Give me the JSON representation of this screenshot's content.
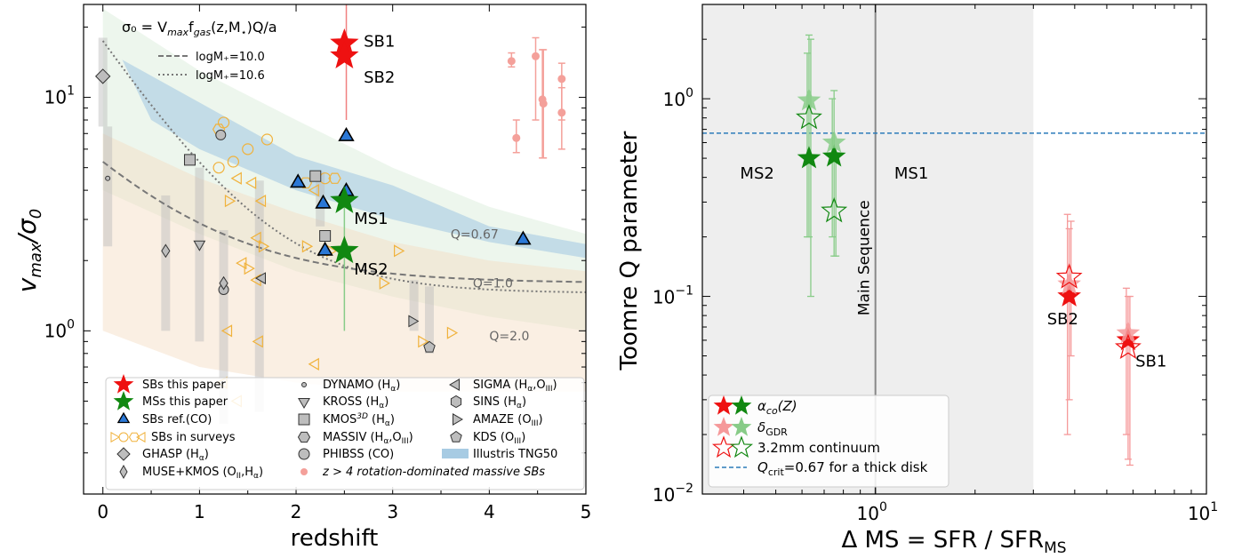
{
  "chart_data": [
    {
      "type": "scatter",
      "xlabel": "redshift",
      "ylabel": "v_max/σ_0",
      "xlim": [
        -0.2,
        5
      ],
      "ylim": [
        0.2,
        25
      ],
      "yscale": "log",
      "xticks": [
        "0",
        "1",
        "2",
        "3",
        "4",
        "5"
      ],
      "yticks": [
        {
          "value": 1,
          "base": "10",
          "exp": "0"
        },
        {
          "value": 10,
          "base": "10",
          "exp": "1"
        }
      ],
      "formula": {
        "text": "σ₀ = V",
        "sub1": "max",
        "mid": "f",
        "sub2": "gas",
        "rest": "(z,M",
        "sub3": "⋆",
        "end": ")Q/a"
      },
      "model_lines": [
        {
          "name": "logM₊=10.0",
          "style": "dashed"
        },
        {
          "name": "logM₊=10.6",
          "style": "dotted"
        }
      ],
      "q_labels": [
        {
          "text": "Q=0.67",
          "x": 3.6,
          "y": 2.6
        },
        {
          "text": "Q=1.0",
          "x": 3.83,
          "y": 1.6
        },
        {
          "text": "Q=2.0",
          "x": 4.0,
          "y": 0.95
        }
      ],
      "sb_this_paper": [
        {
          "label": "SB1",
          "x": 2.5,
          "y": 17
        },
        {
          "label": "SB2",
          "x": 2.5,
          "y": 15
        }
      ],
      "ms_this_paper": [
        {
          "label": "MS1",
          "x": 2.5,
          "y": 3.6
        },
        {
          "label": "MS2",
          "x": 2.5,
          "y": 2.2
        }
      ],
      "sbs_ref_co": [
        {
          "x": 2.52,
          "y": 6.8
        },
        {
          "x": 2.02,
          "y": 4.3
        },
        {
          "x": 2.28,
          "y": 3.5
        },
        {
          "x": 2.52,
          "y": 3.95
        },
        {
          "x": 2.3,
          "y": 2.2
        },
        {
          "x": 4.35,
          "y": 2.45
        }
      ],
      "z4_rotation_sbs": [
        {
          "x": 4.23,
          "y": 14.3,
          "lo": 13.5,
          "hi": 15.5
        },
        {
          "x": 4.28,
          "y": 6.7,
          "lo": 5.8,
          "hi": 8.0
        },
        {
          "x": 4.48,
          "y": 15.0,
          "lo": 8.0,
          "hi": 18.0
        },
        {
          "x": 4.55,
          "y": 9.8,
          "lo": 5.5,
          "hi": 16.0
        },
        {
          "x": 4.56,
          "y": 9.4,
          "lo": 5.5,
          "hi": 16.0
        },
        {
          "x": 4.75,
          "y": 12.0,
          "lo": 8.0,
          "hi": 14.0
        },
        {
          "x": 4.75,
          "y": 8.6,
          "lo": 6.0,
          "hi": 11.0
        }
      ],
      "legend": {
        "col1": [
          "SBs this paper",
          "MSs this paper",
          "SBs ref.(CO)",
          "SBs in surveys",
          "GHASP (H",
          "MUSE+KMOS (O"
        ],
        "col2": [
          "DYNAMO (H",
          "KROSS (H",
          "KMOS",
          "MASSIV (H",
          "PHIBSS (CO)",
          "z > 4 rotation-dominated massive SBs"
        ],
        "col3": [
          "SIGMA (H",
          "SINS (H",
          "AMAZE (O",
          "KDS (O",
          "Illustris TNG50"
        ],
        "sub": {
          "alpha": "α",
          "III": "III",
          "II": "II",
          "3D": "3D"
        }
      }
    },
    {
      "type": "scatter",
      "xlabel": "Δ MS = SFR / SFR",
      "xlabel_sub": "MS",
      "ylabel": "Toomre Q parameter",
      "xscale": "log",
      "yscale": "log",
      "xlim": [
        0.3,
        10
      ],
      "ylim": [
        0.01,
        3
      ],
      "xticks": [
        {
          "value": 1,
          "base": "10",
          "exp": "0"
        },
        {
          "value": 10,
          "base": "10",
          "exp": "1"
        }
      ],
      "yticks": [
        {
          "value": 0.01,
          "base": "10",
          "exp": "−2"
        },
        {
          "value": 0.1,
          "base": "10",
          "exp": "−1"
        },
        {
          "value": 1,
          "base": "10",
          "exp": "0"
        }
      ],
      "q_crit": 0.67,
      "main_sequence_band": [
        0.3,
        3.0
      ],
      "main_sequence_line": 1.0,
      "main_sequence_label": "Main Sequence",
      "point_labels": [
        {
          "text": "MS2",
          "x": 0.39,
          "y": 0.42
        },
        {
          "text": "MS1",
          "x": 1.14,
          "y": 0.42
        },
        {
          "text": "SB2",
          "x": 3.3,
          "y": 0.077
        },
        {
          "text": "SB1",
          "x": 6.1,
          "y": 0.047
        }
      ],
      "series": [
        {
          "name": "α_co(Z)",
          "points": [
            {
              "x": 0.63,
              "y": 0.5,
              "lo": 0.2,
              "hi": 1.7,
              "group": "MS"
            },
            {
              "x": 0.75,
              "y": 0.51,
              "lo": 0.2,
              "hi": 1.0,
              "group": "MS"
            },
            {
              "x": 3.85,
              "y": 0.1,
              "lo": 0.02,
              "hi": 0.26,
              "group": "SB"
            },
            {
              "x": 5.8,
              "y": 0.06,
              "lo": 0.02,
              "hi": 0.11,
              "group": "SB"
            }
          ]
        },
        {
          "name": "δ_GDR",
          "points": [
            {
              "x": 0.63,
              "y": 0.98,
              "lo": 0.2,
              "hi": 2.1,
              "group": "MS"
            },
            {
              "x": 0.75,
              "y": 0.6,
              "lo": 0.16,
              "hi": 1.1,
              "group": "MS"
            },
            {
              "x": 3.85,
              "y": 0.115,
              "lo": 0.03,
              "hi": 0.22,
              "group": "SB"
            },
            {
              "x": 5.8,
              "y": 0.065,
              "lo": 0.015,
              "hi": 0.1,
              "group": "SB"
            }
          ]
        },
        {
          "name": "3.2mm continuum",
          "points": [
            {
              "x": 0.63,
              "y": 0.8,
              "lo": 0.1,
              "hi": 2.0,
              "group": "MS"
            },
            {
              "x": 0.75,
              "y": 0.27,
              "lo": 0.16,
              "hi": 0.5,
              "group": "MS"
            },
            {
              "x": 3.85,
              "y": 0.125,
              "lo": 0.05,
              "hi": 0.24,
              "group": "SB"
            },
            {
              "x": 5.8,
              "y": 0.055,
              "lo": 0.014,
              "hi": 0.1,
              "group": "SB"
            }
          ]
        }
      ],
      "legend": {
        "alpha": "α",
        "alpha_sub": "co",
        "alpha_rest": "(Z)",
        "delta": "δ",
        "delta_sub": "GDR",
        "cont": "3.2mm continuum",
        "qcrit": "Q",
        "qcrit_sub": "crit",
        "qcrit_rest": "=0.67 for a thick disk"
      },
      "colors": {
        "sb": "#ee1111",
        "ms": "#118811",
        "sb_light": "#f5999a",
        "ms_light": "#88cc88",
        "qcrit": "#2b7bba"
      }
    }
  ]
}
